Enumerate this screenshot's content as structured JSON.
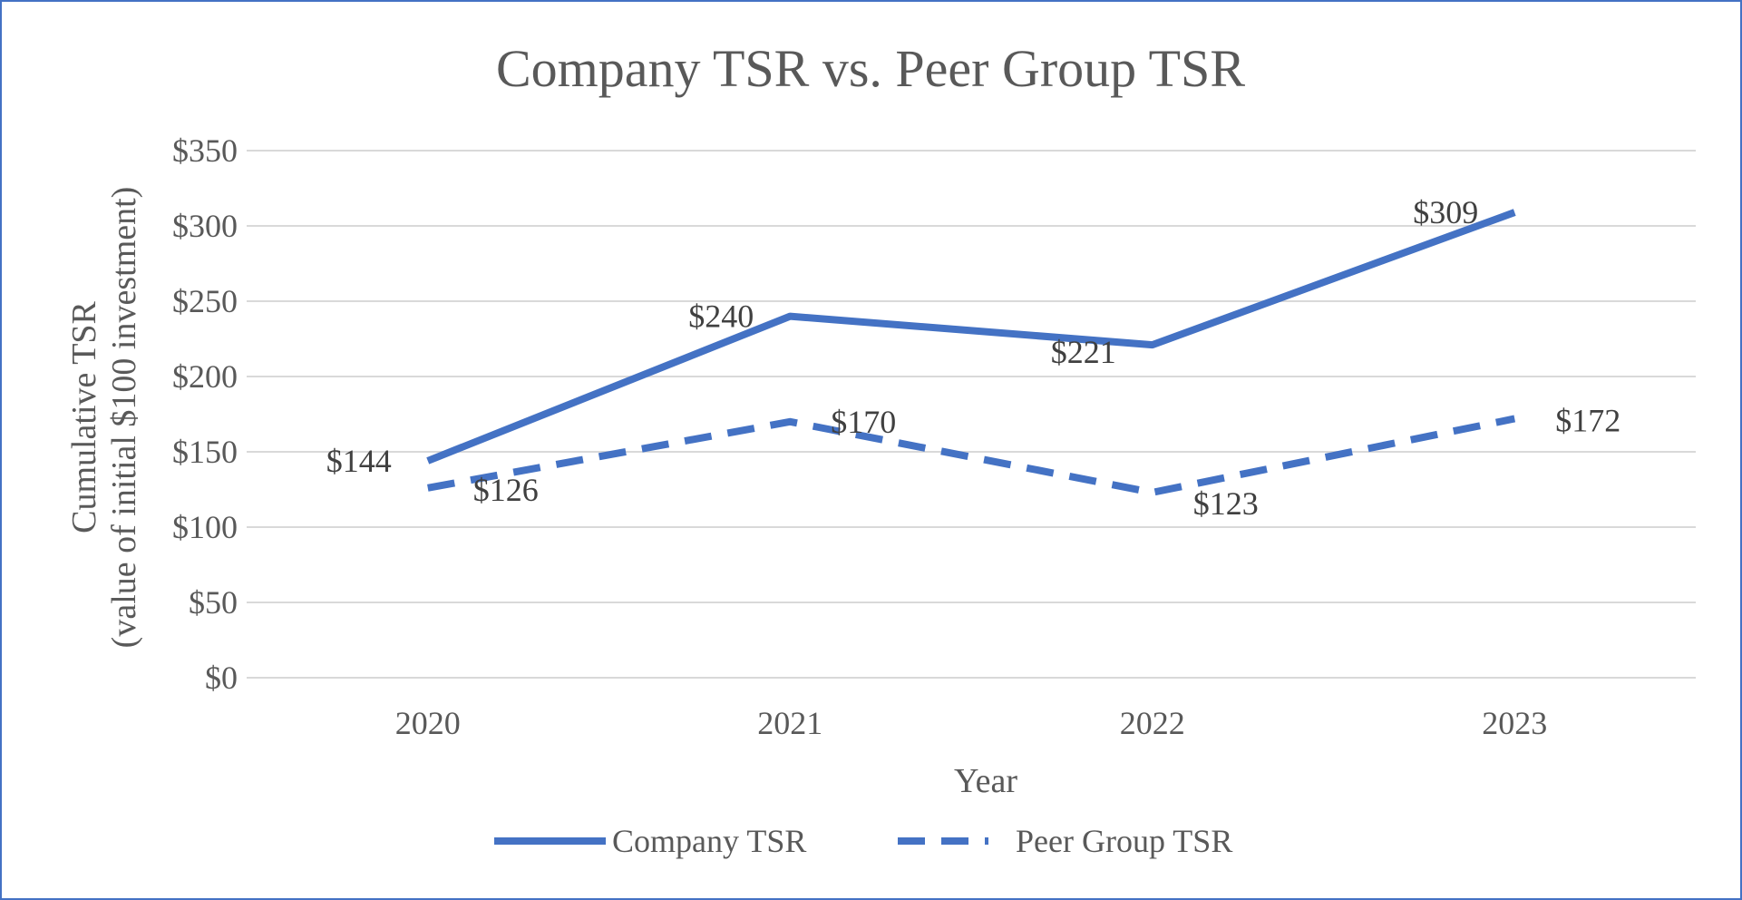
{
  "chart_data": {
    "type": "line",
    "title": "Company TSR vs. Peer Group TSR",
    "xlabel": "Year",
    "ylabel_line1": "Cumulative TSR",
    "ylabel_line2": "(value of initial $100 investment)",
    "categories": [
      "2020",
      "2021",
      "2022",
      "2023"
    ],
    "ylim": [
      0,
      350
    ],
    "yticks": [
      0,
      50,
      100,
      150,
      200,
      250,
      300,
      350
    ],
    "ytick_labels": [
      "$0",
      "$50",
      "$100",
      "$150",
      "$200",
      "$250",
      "$300",
      "$350"
    ],
    "grid": true,
    "legend_position": "bottom",
    "series": [
      {
        "name": "Company TSR",
        "style": "solid",
        "color": "#4472c4",
        "values": [
          144,
          240,
          221,
          309
        ],
        "labels": [
          "$144",
          "$240",
          "$221",
          "$309"
        ]
      },
      {
        "name": "Peer Group TSR",
        "style": "dashed",
        "color": "#4472c4",
        "values": [
          126,
          170,
          123,
          172
        ],
        "labels": [
          "$126",
          "$170",
          "$123",
          "$172"
        ]
      }
    ]
  }
}
